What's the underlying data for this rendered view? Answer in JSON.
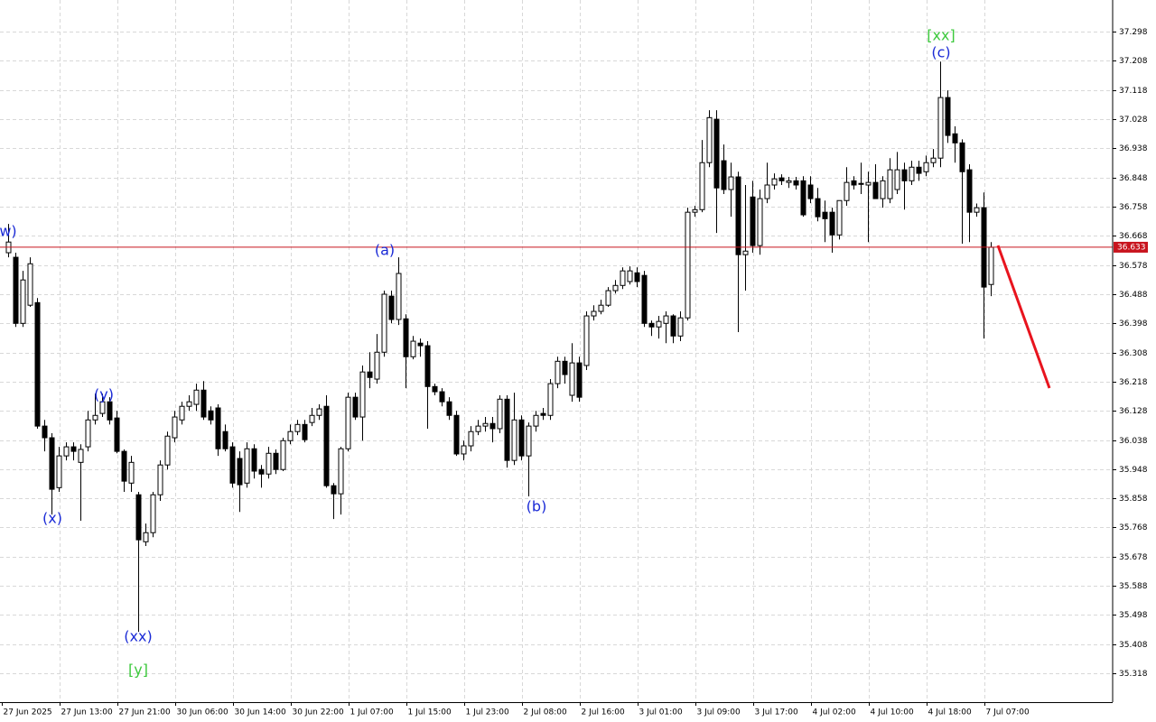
{
  "chart_data": {
    "type": "candlestick",
    "x": [
      "27 Jun 2025",
      null,
      null,
      null,
      null,
      null,
      null,
      null,
      "27 Jun 13:00",
      null,
      null,
      null,
      null,
      null,
      null,
      null,
      "27 Jun 21:00",
      null,
      null,
      null,
      null,
      null,
      null,
      null,
      "30 Jun 06:00",
      null,
      null,
      null,
      null,
      null,
      null,
      null,
      "30 Jun 14:00",
      null,
      null,
      null,
      null,
      null,
      null,
      null,
      "30 Jun 22:00",
      null,
      null,
      null,
      null,
      null,
      null,
      null,
      "1 Jul 07:00",
      null,
      null,
      null,
      null,
      null,
      null,
      null,
      "1 Jul 15:00",
      null,
      null,
      null,
      null,
      null,
      null,
      null,
      "1 Jul 23:00",
      null,
      null,
      null,
      null,
      null,
      null,
      null,
      "2 Jul 08:00",
      null,
      null,
      null,
      null,
      null,
      null,
      null,
      "2 Jul 16:00",
      null,
      null,
      null,
      null,
      null,
      null,
      null,
      "3 Jul 01:00",
      null,
      null,
      null,
      null,
      null,
      null,
      null,
      "3 Jul 09:00",
      null,
      null,
      null,
      null,
      null,
      null,
      null,
      "3 Jul 17:00",
      null,
      null,
      null,
      null,
      null,
      null,
      null,
      "4 Jul 02:00",
      null,
      null,
      null,
      null,
      null,
      null,
      null,
      "4 Jul 10:00",
      null,
      null,
      null,
      null,
      null,
      null,
      null,
      "4 Jul 18:00",
      null,
      null,
      null,
      null,
      null,
      null,
      null,
      "7 Jul 07:00"
    ],
    "candles": [
      [
        36.616,
        36.705,
        36.602,
        36.649
      ],
      [
        36.602,
        36.616,
        36.387,
        36.398
      ],
      [
        36.398,
        36.56,
        36.387,
        36.532
      ],
      [
        36.454,
        36.602,
        36.449,
        36.582
      ],
      [
        36.462,
        36.476,
        36.073,
        36.081
      ],
      [
        36.081,
        36.1,
        36.003,
        36.045
      ],
      [
        36.045,
        36.059,
        35.808,
        35.886
      ],
      [
        35.891,
        36.017,
        35.878,
        35.989
      ],
      [
        35.989,
        36.031,
        35.975,
        36.017
      ],
      [
        36.017,
        36.031,
        35.975,
        36.003
      ],
      [
        35.969,
        36.025,
        35.789,
        36.009
      ],
      [
        36.017,
        36.128,
        36.003,
        36.1
      ],
      [
        36.1,
        36.181,
        36.086,
        36.114
      ],
      [
        36.12,
        36.181,
        36.109,
        36.156
      ],
      [
        36.156,
        36.17,
        36.086,
        36.1
      ],
      [
        36.106,
        36.128,
        35.997,
        36.003
      ],
      [
        36.003,
        36.009,
        35.878,
        35.911
      ],
      [
        35.905,
        35.989,
        35.878,
        35.969
      ],
      [
        35.869,
        35.878,
        35.446,
        35.73
      ],
      [
        35.724,
        35.78,
        35.711,
        35.752
      ],
      [
        35.752,
        35.878,
        35.738,
        35.869
      ],
      [
        35.869,
        35.975,
        35.85,
        35.961
      ],
      [
        35.961,
        36.064,
        35.947,
        36.05
      ],
      [
        36.045,
        36.128,
        36.031,
        36.109
      ],
      [
        36.1,
        36.156,
        36.086,
        36.142
      ],
      [
        36.142,
        36.176,
        36.128,
        36.156
      ],
      [
        36.148,
        36.212,
        36.128,
        36.192
      ],
      [
        36.192,
        36.22,
        36.1,
        36.109
      ],
      [
        36.128,
        36.142,
        36.086,
        36.1
      ],
      [
        36.137,
        36.148,
        35.989,
        36.011
      ],
      [
        36.064,
        36.086,
        36.003,
        36.011
      ],
      [
        36.017,
        36.031,
        35.891,
        35.905
      ],
      [
        35.981,
        36.003,
        35.816,
        35.9
      ],
      [
        35.905,
        36.031,
        35.891,
        36.011
      ],
      [
        36.011,
        36.025,
        35.919,
        35.942
      ],
      [
        35.947,
        35.961,
        35.891,
        35.933
      ],
      [
        35.933,
        36.017,
        35.919,
        35.997
      ],
      [
        35.997,
        36.009,
        35.933,
        35.947
      ],
      [
        35.947,
        36.045,
        35.942,
        36.036
      ],
      [
        36.036,
        36.086,
        36.025,
        36.064
      ],
      [
        36.064,
        36.1,
        36.053,
        36.086
      ],
      [
        36.086,
        36.1,
        36.031,
        36.039
      ],
      [
        36.092,
        36.137,
        36.081,
        36.114
      ],
      [
        36.114,
        36.148,
        36.1,
        36.134
      ],
      [
        36.142,
        36.176,
        35.891,
        35.897
      ],
      [
        35.897,
        35.905,
        35.794,
        35.872
      ],
      [
        35.872,
        36.017,
        35.808,
        36.011
      ],
      [
        36.011,
        36.184,
        36.003,
        36.17
      ],
      [
        36.17,
        36.184,
        36.1,
        36.109
      ],
      [
        36.109,
        36.268,
        36.036,
        36.248
      ],
      [
        36.248,
        36.309,
        36.198,
        36.231
      ],
      [
        36.226,
        36.365,
        36.212,
        36.309
      ],
      [
        36.309,
        36.499,
        36.295,
        36.488
      ],
      [
        36.482,
        36.499,
        36.398,
        36.41
      ],
      [
        36.41,
        36.602,
        36.393,
        36.552
      ],
      [
        36.412,
        36.426,
        36.198,
        36.295
      ],
      [
        36.295,
        36.359,
        36.287,
        36.343
      ],
      [
        36.337,
        36.351,
        36.295,
        36.329
      ],
      [
        36.329,
        36.343,
        36.073,
        36.203
      ],
      [
        36.203,
        36.212,
        36.176,
        36.187
      ],
      [
        36.187,
        36.198,
        36.142,
        36.156
      ],
      [
        36.156,
        36.17,
        36.1,
        36.114
      ],
      [
        36.114,
        36.128,
        35.989,
        35.995
      ],
      [
        35.995,
        36.036,
        35.975,
        36.02
      ],
      [
        36.02,
        36.081,
        36.003,
        36.064
      ],
      [
        36.064,
        36.1,
        36.053,
        36.081
      ],
      [
        36.081,
        36.109,
        36.064,
        36.089
      ],
      [
        36.089,
        36.109,
        36.031,
        36.073
      ],
      [
        36.073,
        36.176,
        36.059,
        36.164
      ],
      [
        36.164,
        36.176,
        35.953,
        35.975
      ],
      [
        35.975,
        36.184,
        35.961,
        36.1
      ],
      [
        36.1,
        36.114,
        35.975,
        35.989
      ],
      [
        35.989,
        36.092,
        35.864,
        36.081
      ],
      [
        36.081,
        36.128,
        36.064,
        36.114
      ],
      [
        36.12,
        36.137,
        36.1,
        36.114
      ],
      [
        36.114,
        36.226,
        36.1,
        36.212
      ],
      [
        36.212,
        36.295,
        36.198,
        36.281
      ],
      [
        36.281,
        36.295,
        36.212,
        36.24
      ],
      [
        36.176,
        36.337,
        36.156,
        36.276
      ],
      [
        36.276,
        36.295,
        36.156,
        36.17
      ],
      [
        36.268,
        36.435,
        36.254,
        36.421
      ],
      [
        36.421,
        36.454,
        36.407,
        36.435
      ],
      [
        36.435,
        36.471,
        36.426,
        36.454
      ],
      [
        36.454,
        36.51,
        36.449,
        36.499
      ],
      [
        36.499,
        36.532,
        36.49,
        36.515
      ],
      [
        36.515,
        36.571,
        36.504,
        36.56
      ],
      [
        36.527,
        36.574,
        36.518,
        36.56
      ],
      [
        36.554,
        36.571,
        36.51,
        36.527
      ],
      [
        36.546,
        36.56,
        36.387,
        36.398
      ],
      [
        36.398,
        36.407,
        36.359,
        36.387
      ],
      [
        36.387,
        36.421,
        36.351,
        36.404
      ],
      [
        36.398,
        36.435,
        36.337,
        36.421
      ],
      [
        36.421,
        36.426,
        36.337,
        36.359
      ],
      [
        36.359,
        36.435,
        36.343,
        36.415
      ],
      [
        36.415,
        36.755,
        36.407,
        36.741
      ],
      [
        36.741,
        36.761,
        36.727,
        36.749
      ],
      [
        36.749,
        36.964,
        36.741,
        36.894
      ],
      [
        36.894,
        37.056,
        36.88,
        37.033
      ],
      [
        37.028,
        37.056,
        36.677,
        36.816
      ],
      [
        36.9,
        36.95,
        36.797,
        36.811
      ],
      [
        36.811,
        36.894,
        36.727,
        36.85
      ],
      [
        36.85,
        36.866,
        36.371,
        36.61
      ],
      [
        36.61,
        36.825,
        36.499,
        36.621
      ],
      [
        36.788,
        36.838,
        36.616,
        36.638
      ],
      [
        36.638,
        36.811,
        36.61,
        36.783
      ],
      [
        36.783,
        36.894,
        36.769,
        36.825
      ],
      [
        36.825,
        36.861,
        36.811,
        36.844
      ],
      [
        36.847,
        36.858,
        36.825,
        36.838
      ],
      [
        36.833,
        36.85,
        36.816,
        36.838
      ],
      [
        36.838,
        36.85,
        36.811,
        36.825
      ],
      [
        36.838,
        36.852,
        36.727,
        36.733
      ],
      [
        36.825,
        36.852,
        36.769,
        36.783
      ],
      [
        36.783,
        36.816,
        36.713,
        36.727
      ],
      [
        36.741,
        36.777,
        36.649,
        36.721
      ],
      [
        36.741,
        36.755,
        36.616,
        36.671
      ],
      [
        36.671,
        36.777,
        36.657,
        36.777
      ],
      [
        36.777,
        36.88,
        36.761,
        36.833
      ],
      [
        36.838,
        36.852,
        36.811,
        36.825
      ],
      [
        36.83,
        36.894,
        36.797,
        36.827
      ],
      [
        36.825,
        36.866,
        36.649,
        36.833
      ],
      [
        36.833,
        36.889,
        36.783,
        36.783
      ],
      [
        36.783,
        36.852,
        36.755,
        36.838
      ],
      [
        36.783,
        36.908,
        36.769,
        36.872
      ],
      [
        36.811,
        36.927,
        36.797,
        36.872
      ],
      [
        36.872,
        36.894,
        36.749,
        36.838
      ],
      [
        36.838,
        36.9,
        36.825,
        36.88
      ],
      [
        36.88,
        36.9,
        36.838,
        36.861
      ],
      [
        36.866,
        36.916,
        36.852,
        36.894
      ],
      [
        36.894,
        36.936,
        36.88,
        36.908
      ],
      [
        36.908,
        37.206,
        36.88,
        37.095
      ],
      [
        37.095,
        37.117,
        36.955,
        36.978
      ],
      [
        36.983,
        37.006,
        36.894,
        36.955
      ],
      [
        36.955,
        36.966,
        36.644,
        36.866
      ],
      [
        36.872,
        36.889,
        36.649,
        36.741
      ],
      [
        36.741,
        36.768,
        36.727,
        36.755
      ],
      [
        36.755,
        36.802,
        36.351,
        36.51
      ],
      [
        36.518,
        36.649,
        36.482,
        36.633
      ]
    ],
    "ylim": [
      35.229,
      37.396
    ],
    "yticks": [
      35.318,
      35.408,
      35.498,
      35.588,
      35.678,
      35.768,
      35.858,
      35.948,
      36.038,
      36.128,
      36.218,
      36.308,
      36.398,
      36.488,
      36.578,
      36.668,
      36.758,
      36.848,
      36.938,
      37.028,
      37.118,
      37.208,
      37.298
    ],
    "grid": true,
    "up_color": "#ffffff",
    "down_color": "#000000",
    "current_price": 36.633,
    "current_price_color": "#c8141e",
    "annotations": [
      {
        "text": "w)",
        "color": "#1a2ad6"
      },
      {
        "text": "(x)",
        "color": "#1a2ad6"
      },
      {
        "text": "(y)",
        "color": "#1a2ad6"
      },
      {
        "text": "(xx)",
        "color": "#1a2ad6"
      },
      {
        "text": "[y]",
        "color": "#3cc83c"
      },
      {
        "text": "(a)",
        "color": "#1a2ad6"
      },
      {
        "text": "(b)",
        "color": "#1a2ad6"
      },
      {
        "text": "(c)",
        "color": "#1a2ad6"
      },
      {
        "text": "[xx]",
        "color": "#3cc83c"
      }
    ]
  }
}
